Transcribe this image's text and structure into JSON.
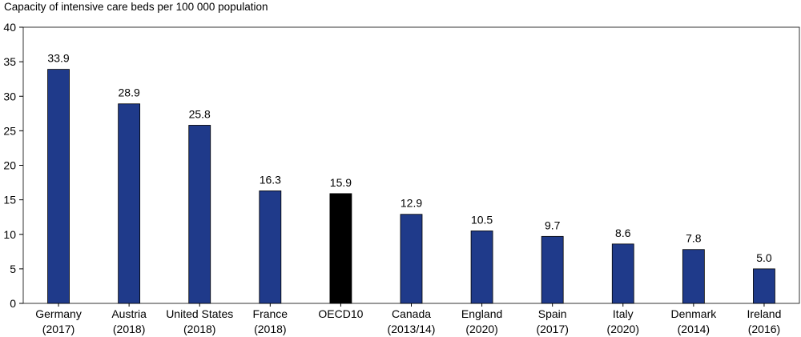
{
  "chart_data": {
    "type": "bar",
    "title": "Capacity of intensive care beds per 100 000 population",
    "xlabel": "",
    "ylabel": "",
    "ylim": [
      0,
      40
    ],
    "yticks": [
      0,
      5,
      10,
      15,
      20,
      25,
      30,
      35,
      40
    ],
    "grid": false,
    "legend": "none",
    "categories": [
      [
        "Germany",
        "(2017)"
      ],
      [
        "Austria",
        "(2018)"
      ],
      [
        "United States",
        "(2018)"
      ],
      [
        "France",
        "(2018)"
      ],
      [
        "OECD10",
        ""
      ],
      [
        "Canada",
        "(2013/14)"
      ],
      [
        "England",
        "(2020)"
      ],
      [
        "Spain",
        "(2017)"
      ],
      [
        "Italy",
        "(2020)"
      ],
      [
        "Denmark",
        "(2014)"
      ],
      [
        "Ireland",
        "(2016)"
      ]
    ],
    "values": [
      33.9,
      28.9,
      25.8,
      16.3,
      15.9,
      12.9,
      10.5,
      9.7,
      8.6,
      7.8,
      5.0
    ],
    "value_labels": [
      "33.9",
      "28.9",
      "25.8",
      "16.3",
      "15.9",
      "12.9",
      "10.5",
      "9.7",
      "8.6",
      "7.8",
      "5.0"
    ],
    "colors": {
      "bar": "#1f3a8a",
      "highlight": "#000000",
      "highlight_category": "OECD10"
    }
  }
}
